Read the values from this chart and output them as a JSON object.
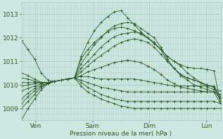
{
  "bg_color": "#cce8e0",
  "grid_color": "#a8ccC4",
  "line_color": "#2d5a27",
  "ylabel": "Pression niveau de la mer( hPa )",
  "yticks": [
    1009,
    1010,
    1011,
    1012,
    1013
  ],
  "ylim": [
    1008.5,
    1013.5
  ],
  "xtick_labels": [
    "Ven",
    "Sam",
    "Dim",
    "Lun"
  ],
  "xtick_positions": [
    12,
    60,
    108,
    156
  ],
  "xlim": [
    0,
    168
  ],
  "series": [
    [
      1008.5,
      1009.0,
      1009.4,
      1009.8,
      1010.05,
      1010.15,
      1010.2,
      1010.25,
      1010.3,
      1011.2,
      1011.8,
      1012.3,
      1012.65,
      1012.9,
      1013.1,
      1013.15,
      1012.85,
      1012.55,
      1012.25,
      1012.0,
      1011.75,
      1011.5,
      1011.2,
      1011.0,
      1010.8,
      1010.5,
      1010.3,
      1010.1,
      1009.9,
      1009.8,
      1009.75
    ],
    [
      1009.0,
      1009.3,
      1009.6,
      1009.9,
      1010.05,
      1010.15,
      1010.2,
      1010.25,
      1010.3,
      1010.9,
      1011.3,
      1011.7,
      1012.0,
      1012.3,
      1012.5,
      1012.6,
      1012.65,
      1012.6,
      1012.4,
      1012.2,
      1012.0,
      1011.6,
      1011.1,
      1010.7,
      1010.4,
      1010.2,
      1010.0,
      1009.9,
      1009.8,
      1009.7,
      1009.2
    ],
    [
      1009.2,
      1009.5,
      1009.75,
      1009.95,
      1010.05,
      1010.15,
      1010.2,
      1010.25,
      1010.3,
      1010.7,
      1011.0,
      1011.3,
      1011.6,
      1011.85,
      1012.05,
      1012.15,
      1012.2,
      1012.25,
      1012.2,
      1012.0,
      1011.8,
      1011.5,
      1011.0,
      1010.7,
      1010.4,
      1010.3,
      1010.2,
      1010.1,
      1010.0,
      1009.9,
      1009.3
    ],
    [
      1009.4,
      1009.65,
      1009.85,
      1010.0,
      1010.05,
      1010.15,
      1010.2,
      1010.25,
      1010.3,
      1010.55,
      1010.8,
      1011.05,
      1011.25,
      1011.45,
      1011.65,
      1011.8,
      1011.9,
      1011.95,
      1011.9,
      1011.8,
      1011.6,
      1011.3,
      1011.0,
      1010.7,
      1010.45,
      1010.3,
      1010.2,
      1010.1,
      1010.0,
      1009.9,
      1009.4
    ],
    [
      1009.75,
      1009.85,
      1009.95,
      1010.05,
      1010.1,
      1010.15,
      1010.2,
      1010.25,
      1010.3,
      1010.4,
      1010.55,
      1010.65,
      1010.75,
      1010.85,
      1010.95,
      1011.0,
      1011.05,
      1011.0,
      1010.95,
      1010.8,
      1010.65,
      1010.45,
      1010.2,
      1010.05,
      1009.9,
      1009.85,
      1009.8,
      1009.75,
      1009.7,
      1009.7,
      1009.45
    ],
    [
      1009.95,
      1010.0,
      1010.05,
      1010.1,
      1010.1,
      1010.15,
      1010.2,
      1010.25,
      1010.3,
      1010.35,
      1010.35,
      1010.3,
      1010.25,
      1010.25,
      1010.25,
      1010.25,
      1010.25,
      1010.25,
      1010.2,
      1010.15,
      1010.1,
      1010.05,
      1010.0,
      1009.95,
      1009.95,
      1009.95,
      1009.95,
      1009.95,
      1009.95,
      1009.95,
      1009.5
    ],
    [
      1010.1,
      1010.1,
      1010.1,
      1010.1,
      1010.1,
      1010.15,
      1010.2,
      1010.25,
      1010.3,
      1010.2,
      1010.1,
      1010.0,
      1009.9,
      1009.85,
      1009.8,
      1009.75,
      1009.7,
      1009.7,
      1009.7,
      1009.7,
      1009.7,
      1009.7,
      1009.7,
      1009.7,
      1009.7,
      1009.7,
      1009.7,
      1009.7,
      1009.7,
      1009.7,
      1009.6
    ],
    [
      1010.3,
      1010.25,
      1010.15,
      1010.1,
      1010.1,
      1010.15,
      1010.2,
      1010.25,
      1010.3,
      1010.1,
      1009.9,
      1009.75,
      1009.6,
      1009.5,
      1009.4,
      1009.35,
      1009.3,
      1009.3,
      1009.3,
      1009.3,
      1009.3,
      1009.3,
      1009.3,
      1009.3,
      1009.3,
      1009.3,
      1009.3,
      1009.3,
      1009.3,
      1009.3,
      1009.2
    ],
    [
      1010.5,
      1010.4,
      1010.25,
      1010.1,
      1010.1,
      1010.15,
      1010.2,
      1010.25,
      1010.3,
      1009.95,
      1009.7,
      1009.55,
      1009.4,
      1009.3,
      1009.2,
      1009.1,
      1009.05,
      1009.0,
      1009.0,
      1009.0,
      1009.0,
      1009.0,
      1009.0,
      1009.0,
      1009.0,
      1009.0,
      1009.0,
      1009.0,
      1009.0,
      1009.0,
      1009.0
    ],
    [
      1011.9,
      1011.5,
      1011.1,
      1010.5,
      1010.2,
      1010.15,
      1010.2,
      1010.25,
      1010.3,
      1011.1,
      1011.5,
      1011.8,
      1012.05,
      1012.25,
      1012.4,
      1012.45,
      1012.4,
      1012.3,
      1012.15,
      1012.0,
      1011.8,
      1011.5,
      1011.2,
      1011.0,
      1010.85,
      1010.75,
      1010.7,
      1010.7,
      1010.65,
      1010.6,
      1009.2
    ]
  ]
}
